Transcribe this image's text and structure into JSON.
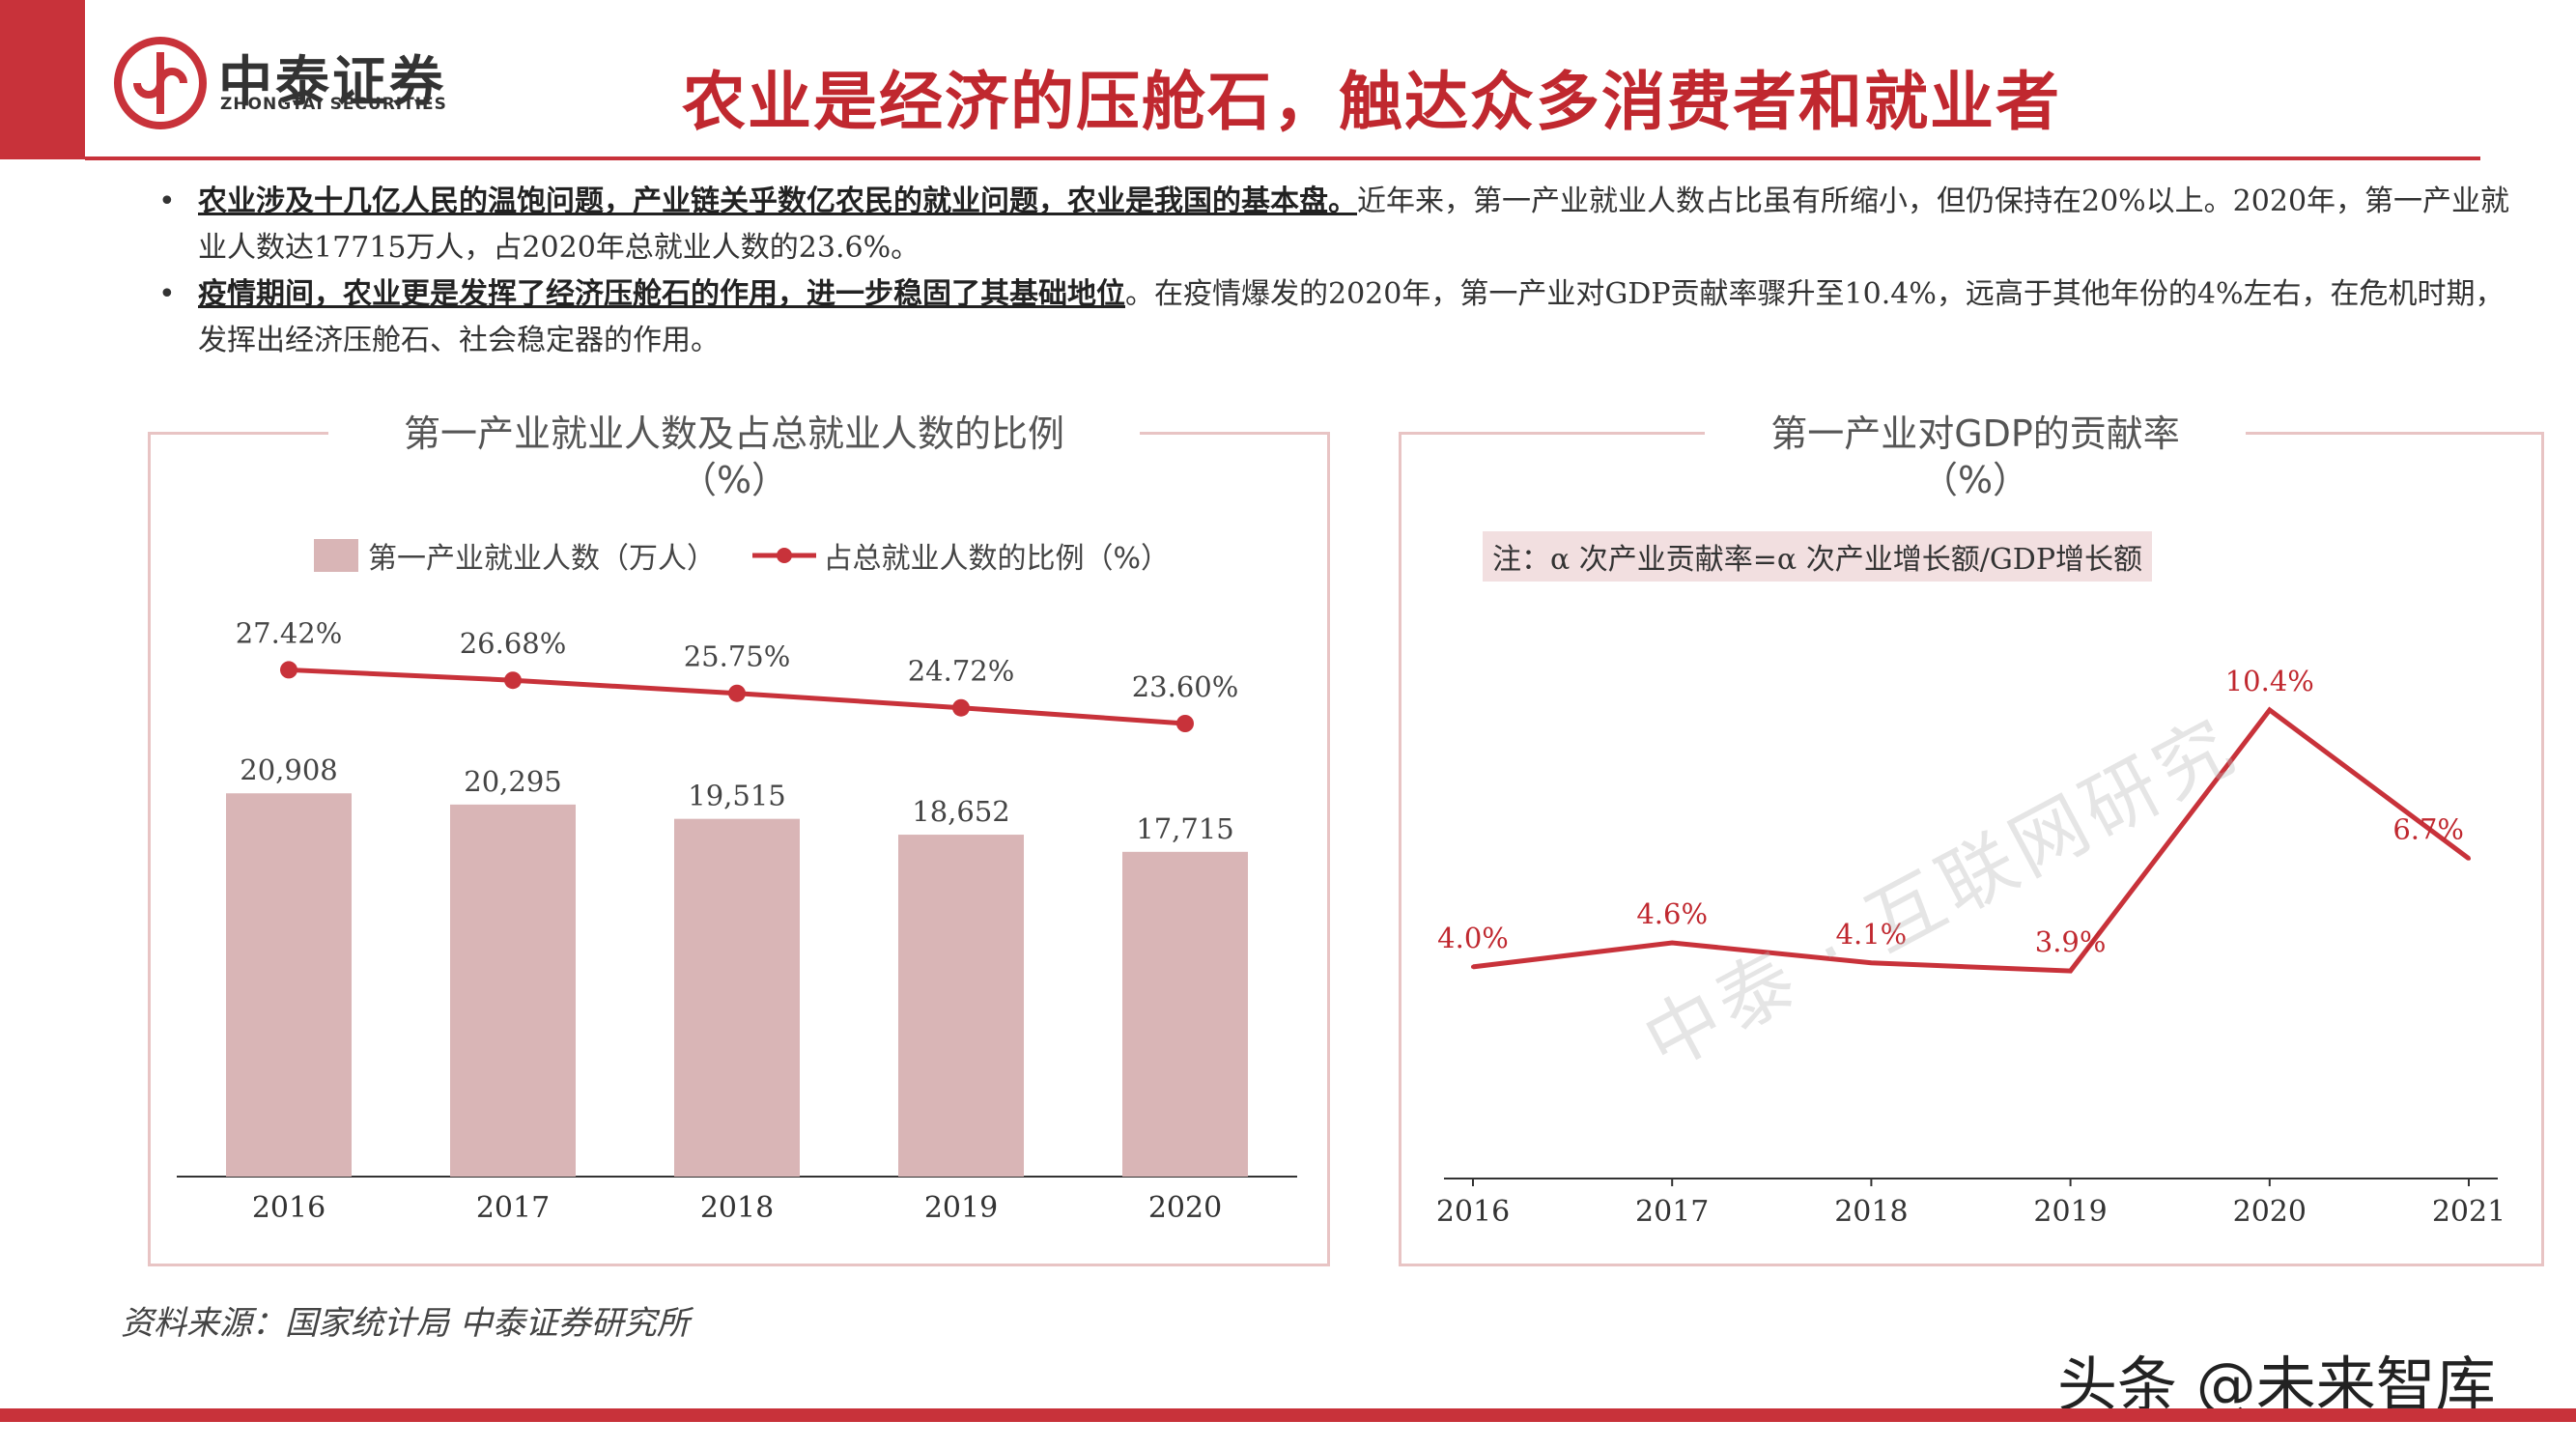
{
  "brand": {
    "name_cn": "中泰证券",
    "name_en": "ZHONGTAI SECURITIES"
  },
  "page_title": "农业是经济的压舱石，触达众多消费者和就业者",
  "bullets": [
    {
      "bold": "农业涉及十几亿人民的温饱问题，产业链关乎数亿农民的就业问题，农业是我国的基本盘。",
      "text": "近年来，第一产业就业人数占比虽有所缩小，但仍保持在20%以上。2020年，第一产业就业人数达17715万人，占2020年总就业人数的23.6%。"
    },
    {
      "bold": "疫情期间，农业更是发挥了经济压舱石的作用，进一步稳固了其基础地位",
      "text": "。在疫情爆发的2020年，第一产业对GDP贡献率骤升至10.4%，远高于其他年份的4%左右，在危机时期，发挥出经济压舱石、社会稳定器的作用。"
    }
  ],
  "left_panel": {
    "title_line1": "第一产业就业人数及占总就业人数的比例",
    "title_line2": "（%）",
    "legend_bar": "第一产业就业人数（万人）",
    "legend_line": "占总就业人数的比例（%）"
  },
  "right_panel": {
    "title_line1": "第一产业对GDP的贡献率",
    "title_line2": "（%）",
    "note": "注：α 次产业贡献率=α 次产业增长额/GDP增长额"
  },
  "source": "资料来源：国家统计局 中泰证券研究所",
  "watermark_corner": "头条 @未来智库",
  "watermark_diag": "中泰 · 互联网研究",
  "colors": {
    "accent": "#c8323a",
    "bar": "#d9b5b6",
    "line": "#c8323a",
    "panel_border": "#e8c4c4"
  },
  "chart_data": [
    {
      "type": "bar",
      "categories": [
        "2016",
        "2017",
        "2018",
        "2019",
        "2020"
      ],
      "series": [
        {
          "name": "第一产业就业人数（万人）",
          "type": "bar",
          "values": [
            20908,
            20295,
            19515,
            18652,
            17715
          ],
          "labels": [
            "20,908",
            "20,295",
            "19,515",
            "18,652",
            "17,715"
          ]
        },
        {
          "name": "占总就业人数的比例（%）",
          "type": "line",
          "values": [
            27.42,
            26.68,
            25.75,
            24.72,
            23.6
          ],
          "labels": [
            "27.42%",
            "26.68%",
            "25.75%",
            "24.72%",
            "23.60%"
          ]
        }
      ],
      "title": "第一产业就业人数及占总就业人数的比例（%）",
      "legend": "top"
    },
    {
      "type": "line",
      "categories": [
        "2016",
        "2017",
        "2018",
        "2019",
        "2020",
        "2021"
      ],
      "series": [
        {
          "values": [
            4.0,
            4.6,
            4.1,
            3.9,
            10.4,
            6.7
          ],
          "labels": [
            "4.0%",
            "4.6%",
            "4.1%",
            "3.9%",
            "10.4%",
            "6.7%"
          ]
        }
      ],
      "title": "第一产业对GDP的贡献率（%）",
      "grid": false
    }
  ]
}
